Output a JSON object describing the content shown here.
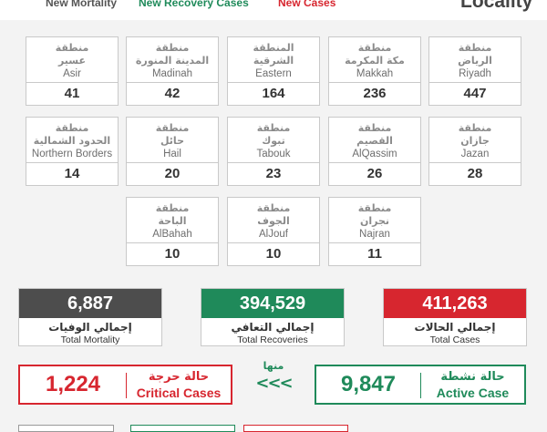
{
  "header": {
    "mortality_label": "New Mortality",
    "recovery_label": "New Recovery Cases",
    "cases_label": "New Cases",
    "locality_label": "Locality"
  },
  "regions": [
    {
      "ar": "منطقة\nالرياض",
      "en": "Riyadh",
      "value": "447"
    },
    {
      "ar": "منطقة\nمكة المكرمة",
      "en": "Makkah",
      "value": "236"
    },
    {
      "ar": "المنطقة\nالشرقية",
      "en": "Eastern",
      "value": "164"
    },
    {
      "ar": "منطقة\nالمدينة المنورة",
      "en": "Madinah",
      "value": "42"
    },
    {
      "ar": "منطقة\nعسير",
      "en": "Asir",
      "value": "41"
    },
    {
      "ar": "منطقة\nجازان",
      "en": "Jazan",
      "value": "28"
    },
    {
      "ar": "منطقة\nالقصيم",
      "en": "AlQassim",
      "value": "26"
    },
    {
      "ar": "منطقة\nتبوك",
      "en": "Tabouk",
      "value": "23"
    },
    {
      "ar": "منطقة\nحائل",
      "en": "Hail",
      "value": "20"
    },
    {
      "ar": "منطقة\nالحدود الشمالية",
      "en": "Northern Borders",
      "value": "14"
    },
    {
      "ar": "منطقة\nنجران",
      "en": "Najran",
      "value": "11"
    },
    {
      "ar": "منطقة\nالجوف",
      "en": "AlJouf",
      "value": "10"
    },
    {
      "ar": "منطقة\nالباحة",
      "en": "AlBahah",
      "value": "10"
    }
  ],
  "totals": {
    "mortality": {
      "value": "6,887",
      "ar": "إجمالي الوفيات",
      "en": "Total Mortality",
      "color": "#4d4d4d"
    },
    "recoveries": {
      "value": "394,529",
      "ar": "إجمالي التعافي",
      "en": "Total Recoveries",
      "color": "#1f8a5a"
    },
    "cases": {
      "value": "411,263",
      "ar": "إجمالي الحالات",
      "en": "Total Cases",
      "color": "#d7262f"
    }
  },
  "critical": {
    "value": "1,224",
    "ar": "حالة حرجة",
    "en": "Critical Cases",
    "color": "#d7262f"
  },
  "active": {
    "value": "9,847",
    "ar": "حالة نشطة",
    "en": "Active Case",
    "color": "#1f8a5a"
  },
  "connector": {
    "label": "منها",
    "arrows": "<<<"
  }
}
